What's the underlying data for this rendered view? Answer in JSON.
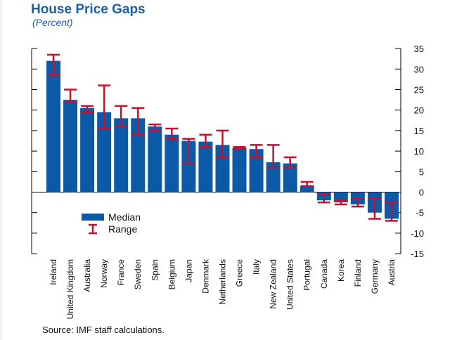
{
  "title": "House Price Gaps",
  "subtitle": "(Percent)",
  "source": "Source: IMF staff calculations.",
  "colors": {
    "bar": "#0b5aa8",
    "range": "#c8102e",
    "axis": "#000000"
  },
  "chart_data": {
    "type": "bar",
    "categories": [
      "Ireland",
      "United Kingdom",
      "Australia",
      "Norway",
      "France",
      "Sweden",
      "Spain",
      "Belgium",
      "Japan",
      "Denmark",
      "Netherlands",
      "Greece",
      "Italy",
      "New Zealand",
      "United States",
      "Portugal",
      "Canada",
      "Korea",
      "Finland",
      "Germany",
      "Austria"
    ],
    "series": [
      {
        "name": "Median",
        "values": [
          32,
          22.5,
          20.5,
          19.5,
          18,
          18,
          16,
          14,
          12.5,
          12.3,
          11.5,
          10.8,
          10.5,
          7.3,
          7,
          1.5,
          -2,
          -2.5,
          -3,
          -5,
          -6.5
        ]
      },
      {
        "name": "Range",
        "low": [
          28.5,
          22,
          19.5,
          15.5,
          16,
          14,
          15,
          13,
          7,
          11,
          8.5,
          10.5,
          8.5,
          6,
          6,
          1.5,
          -2.5,
          -3,
          -3.5,
          -6.5,
          -7
        ],
        "high": [
          33.5,
          25,
          21,
          26,
          21,
          20.5,
          16.5,
          15.5,
          13,
          14,
          15,
          11,
          11.5,
          11.5,
          8.5,
          2.5,
          -0.5,
          -2,
          -1.5,
          -1.5,
          -2.5
        ]
      }
    ],
    "legend": {
      "items": [
        "Median",
        "Range"
      ],
      "position": "lower-left"
    },
    "yaxis": {
      "ticks": [
        35,
        30,
        25,
        20,
        15,
        10,
        5,
        0,
        -5,
        -10,
        -15
      ],
      "ylim": [
        -15,
        35
      ],
      "position": "right"
    },
    "grid": false
  }
}
